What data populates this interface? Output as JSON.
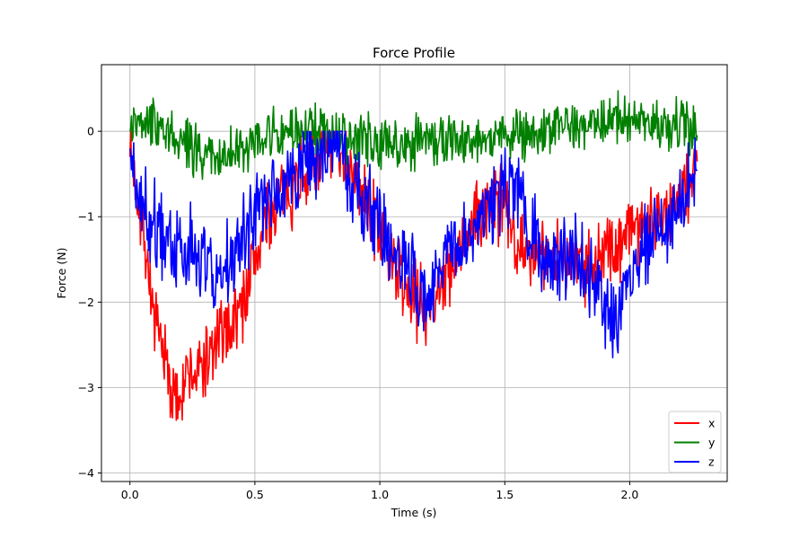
{
  "chart_data": {
    "type": "line",
    "title": "Force Profile",
    "xlabel": "Time (s)",
    "ylabel": "Force (N)",
    "xlim": [
      -0.114,
      2.39
    ],
    "ylim": [
      -4.1,
      0.78
    ],
    "grid": true,
    "legend_position": "lower-right",
    "x_ticks": [
      0.0,
      0.5,
      1.0,
      1.5,
      2.0
    ],
    "x_tick_labels": [
      "0.0",
      "0.5",
      "1.0",
      "1.5",
      "2.0"
    ],
    "y_ticks": [
      0,
      -1,
      -2,
      -3,
      -4
    ],
    "y_tick_labels": [
      "0",
      "−1",
      "−2",
      "−3",
      "−4"
    ],
    "x_range": [
      0.0,
      2.27
    ],
    "n_samples": 760,
    "noise_seed": 7,
    "series": [
      {
        "name": "x",
        "color": "#ff0000",
        "noise_amplitude": 0.55,
        "envelope_t": [
          0.0,
          0.05,
          0.1,
          0.15,
          0.18,
          0.22,
          0.28,
          0.35,
          0.45,
          0.5,
          0.55,
          0.6,
          0.7,
          0.8,
          0.85,
          0.9,
          1.0,
          1.05,
          1.1,
          1.15,
          1.2,
          1.25,
          1.3,
          1.35,
          1.4,
          1.45,
          1.5,
          1.55,
          1.6,
          1.65,
          1.7,
          1.75,
          1.8,
          1.85,
          1.9,
          1.95,
          2.0,
          2.1,
          2.2,
          2.27
        ],
        "envelope_v": [
          -0.3,
          -1.0,
          -2.3,
          -2.8,
          -3.2,
          -2.9,
          -2.8,
          -2.5,
          -2.0,
          -1.5,
          -1.0,
          -0.8,
          -0.45,
          -0.15,
          -0.1,
          -0.6,
          -1.2,
          -1.5,
          -1.8,
          -2.0,
          -2.0,
          -1.7,
          -1.6,
          -1.2,
          -1.0,
          -0.8,
          -0.9,
          -1.2,
          -1.5,
          -1.5,
          -1.4,
          -1.5,
          -1.5,
          -1.6,
          -1.4,
          -1.3,
          -1.1,
          -1.0,
          -0.8,
          -0.4
        ]
      },
      {
        "name": "y",
        "color": "#008000",
        "noise_amplitude": 0.38,
        "envelope_t": [
          0.0,
          0.05,
          0.1,
          0.2,
          0.3,
          0.4,
          0.5,
          0.6,
          0.7,
          0.8,
          0.9,
          1.0,
          1.1,
          1.2,
          1.3,
          1.4,
          1.5,
          1.6,
          1.7,
          1.8,
          1.9,
          2.0,
          2.1,
          2.2,
          2.27
        ],
        "envelope_v": [
          0.0,
          0.1,
          0.15,
          -0.1,
          -0.3,
          -0.25,
          -0.05,
          0.0,
          0.0,
          0.0,
          -0.1,
          -0.15,
          -0.15,
          -0.05,
          -0.1,
          -0.1,
          0.0,
          -0.05,
          0.05,
          0.05,
          0.1,
          0.15,
          0.1,
          0.05,
          0.0
        ]
      },
      {
        "name": "z",
        "color": "#0000ff",
        "noise_amplitude": 0.6,
        "envelope_t": [
          0.0,
          0.05,
          0.1,
          0.15,
          0.2,
          0.25,
          0.3,
          0.35,
          0.4,
          0.45,
          0.5,
          0.55,
          0.6,
          0.7,
          0.8,
          0.85,
          0.9,
          1.0,
          1.05,
          1.1,
          1.15,
          1.2,
          1.25,
          1.3,
          1.35,
          1.4,
          1.45,
          1.5,
          1.55,
          1.6,
          1.65,
          1.7,
          1.75,
          1.8,
          1.85,
          1.9,
          1.95,
          2.0,
          2.05,
          2.1,
          2.2,
          2.27
        ],
        "envelope_v": [
          -0.2,
          -0.8,
          -1.1,
          -1.3,
          -1.4,
          -1.3,
          -1.5,
          -1.7,
          -1.5,
          -1.3,
          -1.0,
          -0.8,
          -0.7,
          -0.4,
          -0.1,
          -0.2,
          -0.7,
          -1.1,
          -1.4,
          -1.6,
          -1.8,
          -2.0,
          -1.6,
          -1.4,
          -1.2,
          -0.9,
          -0.9,
          -0.7,
          -0.6,
          -1.2,
          -1.5,
          -1.5,
          -1.4,
          -1.5,
          -1.7,
          -2.0,
          -2.3,
          -1.8,
          -1.3,
          -1.2,
          -0.9,
          -0.4
        ]
      }
    ]
  }
}
